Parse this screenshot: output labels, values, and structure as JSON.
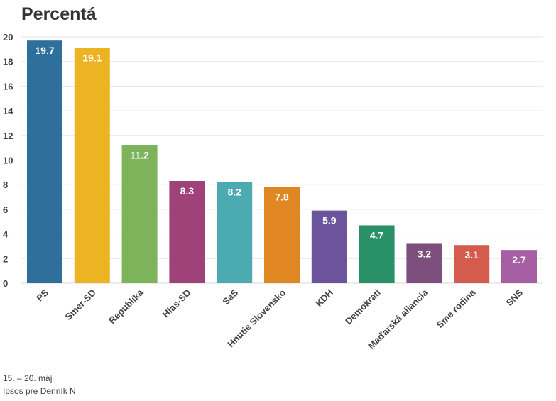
{
  "chart_data": {
    "type": "bar",
    "title": "Percentá",
    "categories": [
      "PS",
      "Smer-SD",
      "Republika",
      "Hlas-SD",
      "SaS",
      "Hnutie Slovensko",
      "KDH",
      "Demokrati",
      "Maďarská aliancia",
      "Sme rodina",
      "SNS"
    ],
    "values": [
      19.7,
      19.1,
      11.2,
      8.3,
      8.2,
      7.8,
      5.9,
      4.7,
      3.2,
      3.1,
      2.7
    ],
    "data_labels": [
      "19.7",
      "19.1",
      "11.2",
      "8.3",
      "8.2",
      "7.8",
      "5.9",
      "4.7",
      "3.2",
      "3.1",
      "2.7"
    ],
    "colors": [
      "#2e6f9c",
      "#ecb322",
      "#7db35a",
      "#a0427a",
      "#4cabb0",
      "#e08723",
      "#6c549c",
      "#2a9067",
      "#7c4f7d",
      "#d35c4e",
      "#a65fa2"
    ],
    "ylim": [
      0,
      20
    ],
    "yticks": [
      "0",
      "2",
      "4",
      "6",
      "8",
      "10",
      "12",
      "14",
      "16",
      "18",
      "20"
    ],
    "xlabel": "",
    "ylabel": "",
    "grid": true
  },
  "footer": {
    "date": "15. – 20. máj",
    "source": "Ipsos pre Denník N"
  }
}
